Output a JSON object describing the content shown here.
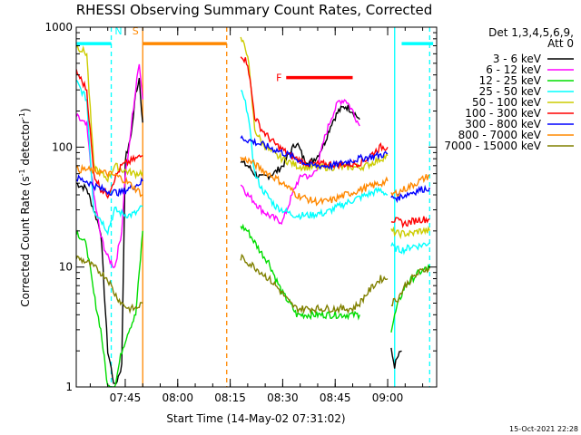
{
  "chart_data": {
    "type": "line",
    "title": "RHESSI Observing Summary Count Rates, Corrected",
    "xlabel": "Start Time (14-May-02 07:31:02)",
    "ylabel": "Corrected Count Rate (s",
    "ylabel_sup1": "-1",
    "ylabel_mid": " detector",
    "ylabel_sup2": "-1",
    "ylabel_end": ")",
    "y_scale": "log",
    "ylim": [
      1,
      1000
    ],
    "xlim_minutes": [
      0,
      103
    ],
    "x_ticks": [
      {
        "t": 14,
        "label": "07:45"
      },
      {
        "t": 29,
        "label": "08:00"
      },
      {
        "t": 44,
        "label": "08:15"
      },
      {
        "t": 59,
        "label": "08:30"
      },
      {
        "t": 74,
        "label": "08:45"
      },
      {
        "t": 89,
        "label": "09:00"
      }
    ],
    "y_ticks": [
      {
        "v": 1,
        "label": "1"
      },
      {
        "v": 10,
        "label": "10"
      },
      {
        "v": 100,
        "label": "100"
      },
      {
        "v": 1000,
        "label": "1000"
      }
    ],
    "legend": {
      "position": "top-right",
      "header1": "Det 1,3,4,5,6,9,",
      "header2": "Att 0",
      "entries": [
        {
          "name": "3 - 6 keV",
          "color": "#000000"
        },
        {
          "name": "6 - 12 keV",
          "color": "#ff00ff"
        },
        {
          "name": "12 - 25 keV",
          "color": "#00dd00"
        },
        {
          "name": "25 - 50 keV",
          "color": "#00ffff"
        },
        {
          "name": "50 - 100 keV",
          "color": "#cccc00"
        },
        {
          "name": "100 - 300 keV",
          "color": "#ff0000"
        },
        {
          "name": "300 - 800 keV",
          "color": "#0000ff"
        },
        {
          "name": "800 - 7000 keV",
          "color": "#ff8800"
        },
        {
          "name": "7000 - 15000 keV",
          "color": "#808000"
        }
      ]
    },
    "flags": [
      {
        "label": "N",
        "color": "#00ffff",
        "segments": [
          [
            0,
            10
          ],
          [
            93,
            102
          ]
        ],
        "value": 730
      },
      {
        "label": "S",
        "color": "#ff8800",
        "segments": [
          [
            19,
            43
          ]
        ],
        "value": 730
      },
      {
        "label": "F",
        "color": "#ff0000",
        "segments": [
          [
            60,
            79
          ]
        ],
        "value": 380
      }
    ],
    "vlines": [
      {
        "t": 10,
        "color": "#00ffff",
        "dash": true
      },
      {
        "t": 19,
        "color": "#ff8800",
        "dash": false
      },
      {
        "t": 43,
        "color": "#ff8800",
        "dash": true
      },
      {
        "t": 91,
        "color": "#00ffff",
        "dash": false
      },
      {
        "t": 101,
        "color": "#00ffff",
        "dash": true
      }
    ],
    "series": [
      {
        "name": "3 - 6 keV",
        "color": "#000000",
        "segments": [
          {
            "t": [
              0,
              3,
              5,
              7,
              9,
              11,
              13,
              14,
              15,
              16,
              17,
              18,
              19
            ],
            "v": [
              50,
              45,
              30,
              20,
              2,
              1,
              1.5,
              80,
              100,
              150,
              280,
              380,
              160
            ]
          },
          {
            "t": [
              47,
              49,
              51,
              53,
              55,
              57,
              59,
              61,
              63,
              65,
              67,
              69,
              71,
              73,
              75,
              77,
              79,
              81
            ],
            "v": [
              75,
              70,
              60,
              55,
              58,
              62,
              70,
              90,
              110,
              80,
              75,
              85,
              110,
              160,
              200,
              220,
              200,
              170
            ]
          },
          {
            "t": [
              90,
              91,
              92,
              93
            ],
            "v": [
              2,
              1.5,
              1.8,
              2
            ]
          }
        ]
      },
      {
        "name": "6 - 12 keV",
        "color": "#ff00ff",
        "segments": [
          {
            "t": [
              0,
              3,
              5,
              7,
              9,
              11,
              13,
              14,
              15,
              16,
              17,
              18,
              19
            ],
            "v": [
              180,
              150,
              40,
              18,
              12,
              10,
              20,
              60,
              90,
              180,
              300,
              520,
              250
            ]
          },
          {
            "t": [
              47,
              49,
              51,
              53,
              55,
              57,
              59,
              61,
              63,
              65,
              67,
              69,
              71,
              73,
              75,
              77,
              79,
              81
            ],
            "v": [
              50,
              40,
              35,
              30,
              27,
              25,
              24,
              35,
              50,
              60,
              55,
              70,
              120,
              180,
              240,
              250,
              200,
              150
            ]
          }
        ]
      },
      {
        "name": "12 - 25 keV",
        "color": "#00dd00",
        "segments": [
          {
            "t": [
              0,
              3,
              5,
              7,
              9,
              11,
              13,
              15,
              17,
              19
            ],
            "v": [
              20,
              15,
              6,
              3,
              1,
              1,
              2,
              3,
              4,
              20
            ]
          },
          {
            "t": [
              47,
              49,
              51,
              53,
              55,
              57,
              59,
              61,
              63,
              65,
              67,
              69,
              71,
              73,
              75,
              77,
              79,
              81
            ],
            "v": [
              22,
              20,
              16,
              13,
              11,
              8,
              6,
              5,
              4,
              4,
              4,
              4,
              4,
              4,
              4,
              4,
              4,
              4
            ]
          },
          {
            "t": [
              90,
              92,
              94,
              96,
              98,
              101
            ],
            "v": [
              3,
              5,
              7,
              8,
              9,
              10
            ]
          }
        ]
      },
      {
        "name": "25 - 50 keV",
        "color": "#00ffff",
        "segments": [
          {
            "t": [
              0,
              3,
              5,
              7,
              9,
              11,
              13,
              15,
              17,
              19
            ],
            "v": [
              350,
              250,
              30,
              25,
              20,
              30,
              28,
              27,
              28,
              32
            ]
          },
          {
            "t": [
              47,
              49,
              51,
              53,
              55,
              57,
              59,
              61,
              63,
              65,
              67,
              69,
              71,
              73,
              75,
              77,
              79,
              81,
              83,
              85,
              87,
              89
            ],
            "v": [
              300,
              200,
              60,
              45,
              38,
              32,
              30,
              28,
              27,
              27,
              27,
              28,
              28,
              30,
              32,
              34,
              36,
              38,
              40,
              42,
              44,
              40
            ]
          },
          {
            "t": [
              90,
              92,
              94,
              96,
              98,
              101
            ],
            "v": [
              15,
              14,
              14,
              15,
              15,
              16
            ]
          }
        ]
      },
      {
        "name": "50 - 100 keV",
        "color": "#cccc00",
        "segments": [
          {
            "t": [
              0,
              3,
              5,
              7,
              9,
              11,
              13,
              15,
              17,
              19
            ],
            "v": [
              700,
              600,
              70,
              60,
              55,
              70,
              65,
              62,
              60,
              62
            ]
          },
          {
            "t": [
              47,
              49,
              51,
              53,
              55,
              57,
              59,
              61,
              63,
              65,
              67,
              69,
              71,
              73,
              75,
              77,
              79,
              81,
              83,
              85,
              87,
              89
            ],
            "v": [
              800,
              600,
              140,
              110,
              95,
              85,
              80,
              75,
              70,
              68,
              68,
              68,
              68,
              68,
              68,
              68,
              68,
              68,
              70,
              75,
              80,
              85
            ]
          },
          {
            "t": [
              90,
              92,
              94,
              96,
              98,
              101
            ],
            "v": [
              20,
              19,
              19,
              19,
              20,
              20
            ]
          }
        ]
      },
      {
        "name": "100 - 300 keV",
        "color": "#ff0000",
        "segments": [
          {
            "t": [
              0,
              3,
              5,
              7,
              9,
              11,
              13,
              15,
              17,
              19
            ],
            "v": [
              430,
              300,
              60,
              45,
              40,
              55,
              70,
              75,
              80,
              85
            ]
          },
          {
            "t": [
              47,
              49,
              51,
              53,
              55,
              57,
              59,
              61,
              63,
              65,
              67,
              69,
              71,
              73,
              75,
              77,
              79,
              81,
              83,
              85,
              87,
              89
            ],
            "v": [
              600,
              500,
              180,
              140,
              120,
              105,
              95,
              85,
              80,
              75,
              72,
              72,
              72,
              72,
              72,
              72,
              72,
              74,
              80,
              90,
              100,
              100
            ]
          },
          {
            "t": [
              90,
              92,
              94,
              96,
              98,
              101
            ],
            "v": [
              25,
              24,
              23,
              24,
              25,
              25
            ]
          }
        ]
      },
      {
        "name": "300 - 800 keV",
        "color": "#0000ff",
        "segments": [
          {
            "t": [
              0,
              3,
              5,
              7,
              9,
              11,
              13,
              15,
              17,
              19
            ],
            "v": [
              55,
              52,
              48,
              45,
              43,
              42,
              42,
              45,
              48,
              52
            ]
          },
          {
            "t": [
              47,
              49,
              51,
              53,
              55,
              57,
              59,
              61,
              63,
              65,
              67,
              69,
              71,
              73,
              75,
              77,
              79,
              81,
              83,
              85,
              87,
              89
            ],
            "v": [
              120,
              115,
              110,
              105,
              100,
              95,
              90,
              85,
              80,
              75,
              70,
              70,
              70,
              70,
              72,
              75,
              78,
              80,
              82,
              84,
              86,
              88
            ]
          },
          {
            "t": [
              90,
              92,
              94,
              96,
              98,
              101
            ],
            "v": [
              38,
              38,
              40,
              42,
              44,
              46
            ]
          }
        ]
      },
      {
        "name": "800 - 7000 keV",
        "color": "#ff8800",
        "segments": [
          {
            "t": [
              0,
              3,
              5,
              7,
              9,
              11,
              13,
              15,
              17,
              19
            ],
            "v": [
              65,
              65,
              63,
              62,
              60,
              58,
              55,
              50,
              45,
              40
            ]
          },
          {
            "t": [
              47,
              49,
              51,
              53,
              55,
              57,
              59,
              61,
              63,
              65,
              67,
              69,
              71,
              73,
              75,
              77,
              79,
              81,
              83,
              85,
              87,
              89
            ],
            "v": [
              80,
              78,
              72,
              65,
              60,
              55,
              50,
              45,
              40,
              38,
              36,
              35,
              35,
              36,
              38,
              40,
              42,
              44,
              46,
              48,
              50,
              52
            ]
          },
          {
            "t": [
              90,
              92,
              94,
              96,
              98,
              101
            ],
            "v": [
              40,
              42,
              45,
              48,
              52,
              58
            ]
          }
        ]
      },
      {
        "name": "7000 - 15000 keV",
        "color": "#808000",
        "segments": [
          {
            "t": [
              0,
              3,
              5,
              7,
              9,
              11,
              13,
              15,
              17,
              19
            ],
            "v": [
              12,
              11,
              10,
              9,
              8,
              6,
              5,
              4.5,
              4.5,
              5
            ]
          },
          {
            "t": [
              47,
              49,
              51,
              53,
              55,
              57,
              59,
              61,
              63,
              65,
              67,
              69,
              71,
              73,
              75,
              77,
              79,
              81,
              83,
              85,
              87,
              89
            ],
            "v": [
              12,
              11,
              10,
              9,
              8,
              7,
              6,
              5,
              4.5,
              4.5,
              4.5,
              4.5,
              4.5,
              4.5,
              4.5,
              4.5,
              4.5,
              5,
              6,
              7,
              8,
              8
            ]
          },
          {
            "t": [
              90,
              92,
              94,
              96,
              98,
              101
            ],
            "v": [
              5,
              5.5,
              7,
              8,
              9,
              10
            ]
          }
        ]
      }
    ]
  },
  "footer": {
    "timestamp": "15-Oct-2021 22:28"
  }
}
